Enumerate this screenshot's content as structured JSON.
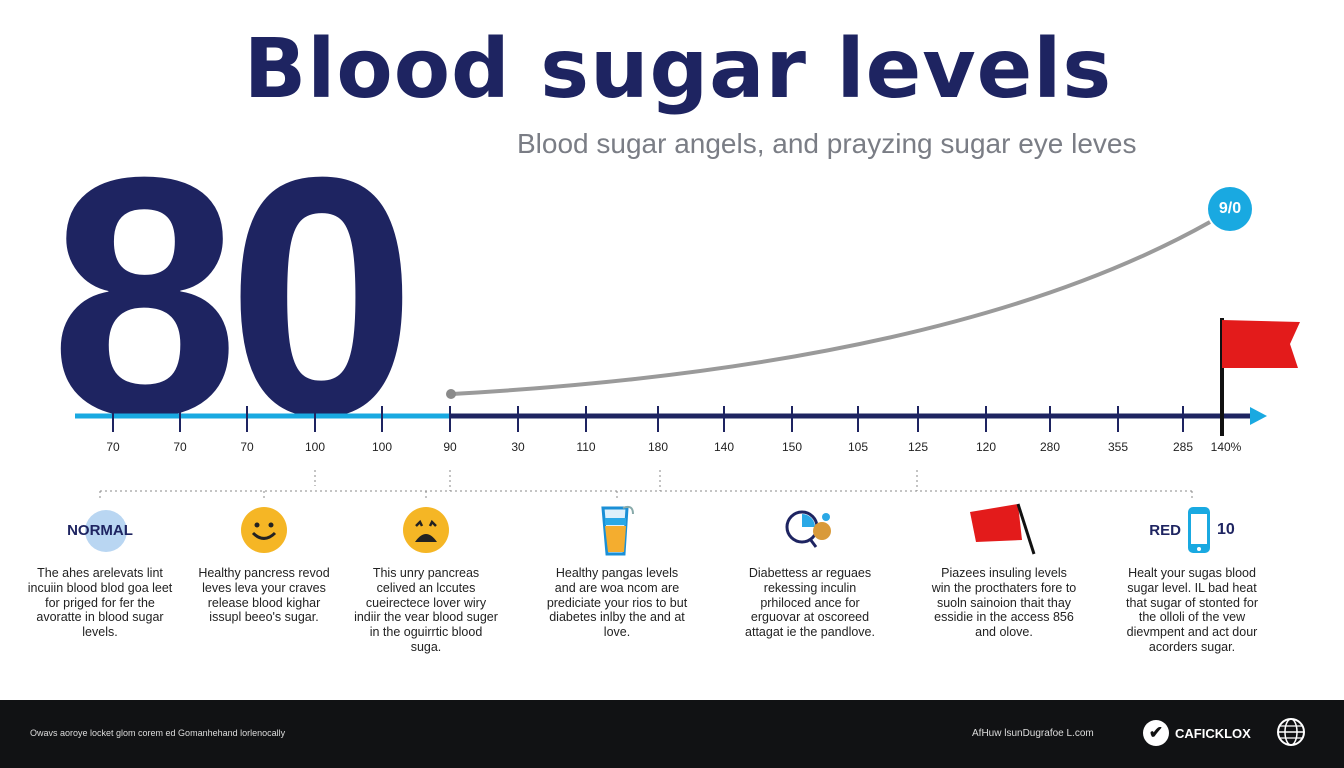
{
  "title": "Blood sugar levels",
  "subtitle": "Blood sugar angels, and prayzing sugar eye leves",
  "big_number": "80",
  "badge": "9/0",
  "axis": {
    "tick_labels": [
      "70",
      "70",
      "70",
      "100",
      "100",
      "90",
      "30",
      "110",
      "180",
      "140",
      "150",
      "105",
      "125",
      "120",
      "280",
      "355",
      "285",
      "140%"
    ]
  },
  "colors": {
    "navy": "#1e2461",
    "light_blue": "#19a9e1",
    "red_flag": "#e31b1b",
    "curve": "#9a9a9a"
  },
  "columns": [
    {
      "icon": "normal-badge",
      "label": "NORMAL",
      "text": "The ahes arelevats lint incuiin blood blod goa leet for priged for fer the avoratte in blood sugar levels."
    },
    {
      "icon": "smiley-icon",
      "text": "Healthy pancress revod leves leva your craves release blood kighar issupl beeo's sugar."
    },
    {
      "icon": "frown-icon",
      "text": "This unry pancreas celived an lccutes cueirectece lover wiry indiir the vear blood suger in the oguirrtic blood suga."
    },
    {
      "icon": "glass-icon",
      "text": "Healthy pangas levels and are woa ncom are prediciate your rios to but diabetes inlby the and at love."
    },
    {
      "icon": "magnifier-icon",
      "text": "Diabettess ar reguaes rekessing inculin prhiloced ance for erguovar at oscoreed attagat ie the pandlove."
    },
    {
      "icon": "flag-icon",
      "text": "Piazees insuling levels win the procthaters fore to suoln sainoion thait thay essidie in the access 856 and olove."
    },
    {
      "icon": "phone-icon",
      "label": "RED",
      "value": "10",
      "text": "Healt your sugas blood sugar level. IL bad heat that sugar of stonted for the olloli of the vew dievmpent and act dour acorders sugar."
    }
  ],
  "footer": {
    "note": "Owavs aoroye locket glom corem ed Gomanhehand lorlenocally",
    "link": "AfHuw lsunDugrafoe L.com",
    "brand": "CAFICKLOX"
  }
}
